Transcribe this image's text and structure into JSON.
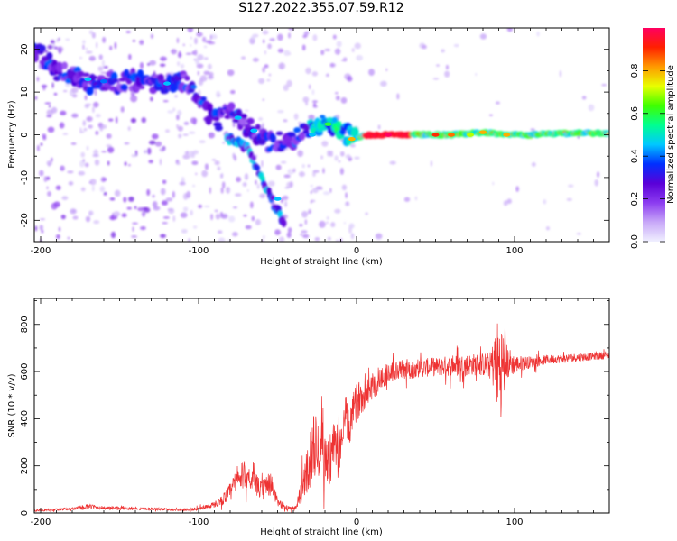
{
  "figure": {
    "title": "S127.2022.355.07.59.R12"
  },
  "chart_data": [
    {
      "type": "heatmap",
      "xlabel": "Height of straight line (km)",
      "ylabel": "Frequency (Hz)",
      "xlim": [
        -204,
        160
      ],
      "ylim": [
        -25,
        25
      ],
      "xticks": [
        -200,
        -100,
        0,
        100
      ],
      "yticks": [
        -20,
        -10,
        0,
        10,
        20
      ],
      "grid": false,
      "colorbar": {
        "label": "Normalized spectral amplitude",
        "range": [
          0,
          1
        ],
        "ticks": [
          "0.0",
          "0.2",
          "0.4",
          "0.6",
          "0.8"
        ],
        "colormap": [
          "#f0f0ff",
          "#c8a8f8",
          "#8c3cf0",
          "#5a00d8",
          "#0030ff",
          "#00c8ff",
          "#00ff90",
          "#40ff00",
          "#e8ff00",
          "#ff9a00",
          "#ff2000",
          "#ff0060"
        ]
      },
      "ridge": [
        [
          -200,
          19
        ],
        [
          -190,
          15
        ],
        [
          -180,
          14
        ],
        [
          -170,
          12
        ],
        [
          -160,
          12.5
        ],
        [
          -150,
          12
        ],
        [
          -140,
          13
        ],
        [
          -130,
          12
        ],
        [
          -120,
          12
        ],
        [
          -110,
          13
        ],
        [
          -100,
          9
        ],
        [
          -90,
          3
        ],
        [
          -80,
          5
        ],
        [
          -70,
          2
        ],
        [
          -60,
          0
        ],
        [
          -55,
          -2
        ],
        [
          -48,
          -1.5
        ],
        [
          -40,
          -1
        ],
        [
          -30,
          1
        ],
        [
          -25,
          2
        ],
        [
          -20,
          3
        ],
        [
          -15,
          2.5
        ],
        [
          -10,
          1
        ],
        [
          -5,
          0
        ],
        [
          0,
          -0.5
        ],
        [
          10,
          0
        ],
        [
          20,
          0
        ],
        [
          30,
          0
        ],
        [
          40,
          0
        ],
        [
          50,
          0
        ],
        [
          60,
          0
        ],
        [
          70,
          0.3
        ],
        [
          80,
          0.6
        ],
        [
          90,
          0.3
        ],
        [
          100,
          0
        ],
        [
          110,
          0
        ],
        [
          120,
          0.3
        ],
        [
          130,
          0.3
        ],
        [
          140,
          0.4
        ],
        [
          150,
          0.4
        ],
        [
          160,
          0.4
        ]
      ],
      "branch": [
        [
          -80,
          -1
        ],
        [
          -70,
          -3
        ],
        [
          -65,
          -6
        ],
        [
          -60,
          -10
        ],
        [
          -55,
          -14
        ],
        [
          -50,
          -18
        ],
        [
          -47,
          -20
        ]
      ]
    },
    {
      "type": "line",
      "xlabel": "Height of straight line (km)",
      "ylabel": "SNR (10 * v/v)",
      "xlim": [
        -204,
        160
      ],
      "ylim": [
        0,
        910
      ],
      "xticks": [
        -200,
        -100,
        0,
        100
      ],
      "yticks": [
        0,
        200,
        400,
        600,
        800
      ],
      "grid": false,
      "series": [
        {
          "color": "#ee3333",
          "x": [
            -204,
            -190,
            -180,
            -170,
            -160,
            -150,
            -140,
            -130,
            -120,
            -110,
            -100,
            -95,
            -90,
            -85,
            -80,
            -75,
            -70,
            -65,
            -60,
            -55,
            -50,
            -45,
            -40,
            -38,
            -35,
            -32,
            -30,
            -27,
            -25,
            -22,
            -20,
            -18,
            -15,
            -12,
            -10,
            -7,
            -5,
            -2,
            0,
            5,
            10,
            15,
            20,
            25,
            30,
            40,
            50,
            60,
            70,
            80,
            85,
            88,
            90,
            92,
            95,
            100,
            110,
            120,
            130,
            140,
            150,
            160
          ],
          "y": [
            10,
            14,
            18,
            28,
            22,
            20,
            20,
            18,
            15,
            14,
            18,
            28,
            35,
            55,
            90,
            140,
            170,
            130,
            95,
            130,
            45,
            25,
            20,
            22,
            100,
            160,
            210,
            300,
            250,
            350,
            240,
            210,
            280,
            240,
            300,
            420,
            350,
            430,
            470,
            510,
            540,
            570,
            590,
            600,
            610,
            615,
            620,
            625,
            630,
            630,
            625,
            640,
            610,
            620,
            640,
            630,
            640,
            650,
            655,
            660,
            665,
            670
          ],
          "amp": [
            4,
            5,
            5,
            10,
            8,
            7,
            7,
            6,
            5,
            5,
            7,
            10,
            12,
            22,
            40,
            60,
            60,
            45,
            40,
            60,
            20,
            10,
            10,
            10,
            60,
            90,
            110,
            150,
            140,
            150,
            130,
            110,
            110,
            100,
            90,
            90,
            80,
            80,
            80,
            70,
            60,
            60,
            50,
            45,
            45,
            40,
            40,
            45,
            45,
            50,
            60,
            150,
            240,
            200,
            80,
            40,
            25,
            20,
            18,
            18,
            16,
            16
          ]
        }
      ]
    }
  ]
}
